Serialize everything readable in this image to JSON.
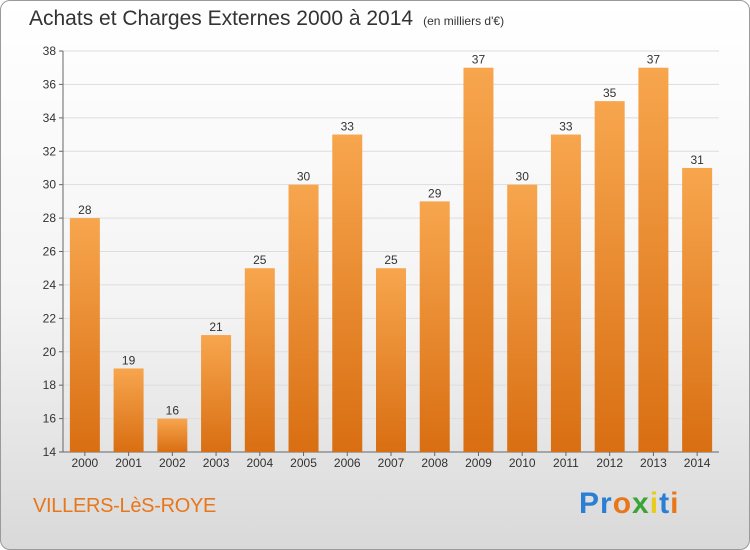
{
  "title": "Achats et Charges Externes 2000 à 2014",
  "unit_note": "(en milliers d'€)",
  "town": "VILLERS-LèS-ROYE",
  "logo": {
    "text": "Proxiti",
    "letters": [
      "P",
      "r",
      "o",
      "x",
      "i",
      "t",
      "i"
    ],
    "colors": [
      "#2a7fd4",
      "#2a7fd4",
      "#e8761b",
      "#3aa535",
      "#e8cc1b",
      "#2a7fd4",
      "#e8761b"
    ]
  },
  "colors": {
    "bar_top": "#f7a64e",
    "bar_bottom": "#d96e12",
    "town": "#e8761b",
    "grid": "#dddddd"
  },
  "chart_data": {
    "type": "bar",
    "categories": [
      "2000",
      "2001",
      "2002",
      "2003",
      "2004",
      "2005",
      "2006",
      "2007",
      "2008",
      "2009",
      "2010",
      "2011",
      "2012",
      "2013",
      "2014"
    ],
    "values": [
      28,
      19,
      16,
      21,
      25,
      30,
      33,
      25,
      29,
      37,
      30,
      33,
      35,
      37,
      31
    ],
    "ylim": [
      14,
      38
    ],
    "yticks": [
      14,
      16,
      18,
      20,
      22,
      24,
      26,
      28,
      30,
      32,
      34,
      36,
      38
    ],
    "grid": true,
    "data_labels": true
  }
}
